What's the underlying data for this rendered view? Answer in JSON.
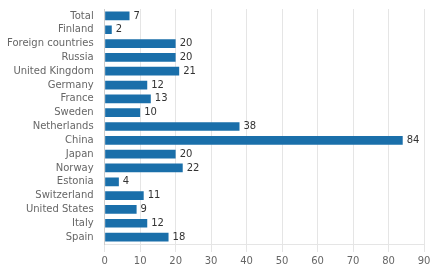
{
  "chart_data": {
    "type": "bar",
    "orientation": "horizontal",
    "categories": [
      "Spain",
      "Italy",
      "United States",
      "Switzerland",
      "Estonia",
      "Norway",
      "Japan",
      "China",
      "Netherlands",
      "Sweden",
      "France",
      "Germany",
      "United Kingdom",
      "Russia",
      "Foreign countries",
      "Finland",
      "Total"
    ],
    "values": [
      18,
      12,
      9,
      11,
      4,
      22,
      20,
      84,
      38,
      10,
      13,
      12,
      21,
      20,
      20,
      2,
      7
    ],
    "color": "#1a6faa",
    "xlim": [
      0,
      90
    ],
    "xticks": [
      0,
      10,
      20,
      30,
      40,
      50,
      60,
      70,
      80,
      90
    ],
    "grid": true,
    "data_labels": true
  }
}
